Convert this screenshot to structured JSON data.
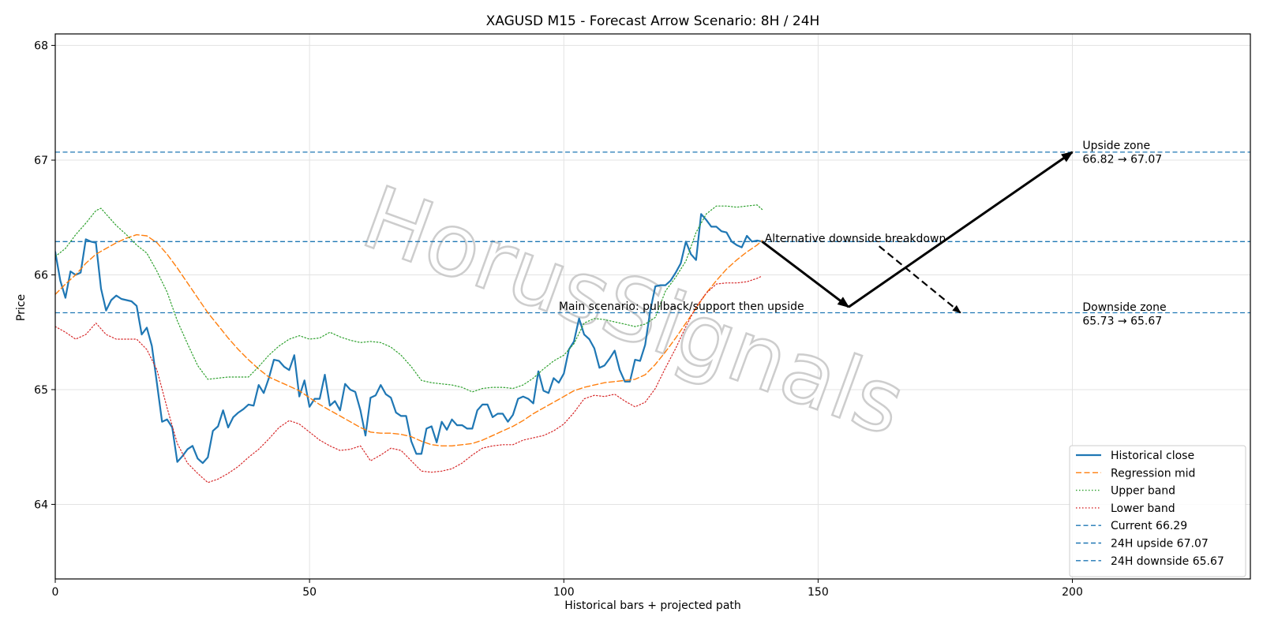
{
  "chart_data": {
    "type": "line",
    "title": "XAGUSD M15 - Forecast Arrow Scenario: 8H / 24H",
    "xlabel": "Historical bars + projected path",
    "ylabel": "Price",
    "xlim": [
      0,
      235
    ],
    "ylim": [
      63.35,
      68.1
    ],
    "xticks": [
      0,
      50,
      100,
      150,
      200
    ],
    "yticks": [
      64,
      65,
      66,
      67,
      68
    ],
    "grid": true,
    "legend_position": "lower-right",
    "watermark": "HorusSignals",
    "colors": {
      "close": "#1f77b4",
      "mid": "#ff7f0e",
      "upper": "#2ca02c",
      "lower": "#d62728",
      "hline": "#1f77b4",
      "arrow": "#000000"
    },
    "series": [
      {
        "name": "Historical close",
        "style": "solid",
        "x": [
          0,
          1,
          2,
          3,
          4,
          5,
          6,
          7,
          8,
          9,
          10,
          11,
          12,
          13,
          14,
          15,
          16,
          17,
          18,
          19,
          20,
          21,
          22,
          23,
          24,
          25,
          26,
          27,
          28,
          29,
          30,
          31,
          32,
          33,
          34,
          35,
          36,
          37,
          38,
          39,
          40,
          41,
          42,
          43,
          44,
          45,
          46,
          47,
          48,
          49,
          50,
          51,
          52,
          53,
          54,
          55,
          56,
          57,
          58,
          59,
          60,
          61,
          62,
          63,
          64,
          65,
          66,
          67,
          68,
          69,
          70,
          71,
          72,
          73,
          74,
          75,
          76,
          77,
          78,
          79,
          80,
          81,
          82,
          83,
          84,
          85,
          86,
          87,
          88,
          89,
          90,
          91,
          92,
          93,
          94,
          95,
          96,
          97,
          98,
          99,
          100,
          101,
          102,
          103,
          104,
          105,
          106,
          107,
          108,
          109,
          110,
          111,
          112,
          113,
          114,
          115,
          116,
          117,
          118,
          119,
          120,
          121,
          122,
          123,
          124,
          125,
          126,
          127,
          128,
          129,
          130,
          131,
          132,
          133,
          134,
          135,
          136,
          137,
          138,
          139
        ],
        "values": [
          66.2,
          65.95,
          65.8,
          66.03,
          66.0,
          66.02,
          66.31,
          66.29,
          66.28,
          65.88,
          65.69,
          65.78,
          65.82,
          65.79,
          65.78,
          65.77,
          65.73,
          65.48,
          65.54,
          65.38,
          65.05,
          64.72,
          64.74,
          64.67,
          64.37,
          64.42,
          64.48,
          64.51,
          64.4,
          64.36,
          64.41,
          64.64,
          64.68,
          64.82,
          64.67,
          64.76,
          64.8,
          64.83,
          64.87,
          64.86,
          65.04,
          64.97,
          65.1,
          65.26,
          65.25,
          65.2,
          65.17,
          65.3,
          64.94,
          65.08,
          64.85,
          64.92,
          64.92,
          65.13,
          64.86,
          64.9,
          64.82,
          65.05,
          65.0,
          64.98,
          64.82,
          64.6,
          64.93,
          64.95,
          65.04,
          64.96,
          64.93,
          64.8,
          64.77,
          64.77,
          64.55,
          64.44,
          64.44,
          64.66,
          64.68,
          64.54,
          64.72,
          64.65,
          64.74,
          64.69,
          64.69,
          64.66,
          64.66,
          64.82,
          64.87,
          64.87,
          64.76,
          64.79,
          64.79,
          64.72,
          64.78,
          64.92,
          64.94,
          64.92,
          64.88,
          65.16,
          64.99,
          64.97,
          65.1,
          65.06,
          65.14,
          65.35,
          65.42,
          65.62,
          65.48,
          65.44,
          65.36,
          65.19,
          65.21,
          65.27,
          65.34,
          65.17,
          65.07,
          65.07,
          65.26,
          65.25,
          65.39,
          65.69,
          65.9,
          65.91,
          65.91,
          65.95,
          66.02,
          66.1,
          66.29,
          66.18,
          66.13,
          66.53,
          66.48,
          66.42,
          66.42,
          66.38,
          66.37,
          66.29,
          66.26,
          66.24,
          66.34,
          66.29,
          66.3,
          66.29
        ]
      },
      {
        "name": "Regression mid",
        "style": "dashed",
        "x": [
          0,
          2,
          4,
          6,
          8,
          10,
          12,
          14,
          16,
          18,
          20,
          22,
          24,
          26,
          28,
          30,
          32,
          34,
          36,
          38,
          40,
          42,
          44,
          46,
          48,
          50,
          52,
          54,
          56,
          58,
          60,
          62,
          64,
          66,
          68,
          70,
          72,
          74,
          76,
          78,
          80,
          82,
          84,
          86,
          88,
          90,
          92,
          94,
          96,
          98,
          100,
          102,
          104,
          106,
          108,
          110,
          112,
          114,
          116,
          118,
          120,
          122,
          124,
          126,
          128,
          130,
          132,
          134,
          136,
          138,
          139
        ],
        "values": [
          65.83,
          65.92,
          66.0,
          66.1,
          66.18,
          66.23,
          66.28,
          66.32,
          66.35,
          66.34,
          66.28,
          66.18,
          66.06,
          65.93,
          65.8,
          65.67,
          65.56,
          65.45,
          65.35,
          65.26,
          65.18,
          65.11,
          65.07,
          65.03,
          64.99,
          64.93,
          64.87,
          64.82,
          64.77,
          64.72,
          64.67,
          64.63,
          64.62,
          64.62,
          64.61,
          64.59,
          64.55,
          64.52,
          64.51,
          64.51,
          64.52,
          64.53,
          64.56,
          64.6,
          64.64,
          64.68,
          64.73,
          64.79,
          64.84,
          64.89,
          64.94,
          64.99,
          65.02,
          65.04,
          65.06,
          65.07,
          65.08,
          65.09,
          65.13,
          65.22,
          65.33,
          65.45,
          65.58,
          65.71,
          65.84,
          65.95,
          66.05,
          66.13,
          66.2,
          66.26,
          66.3
        ]
      },
      {
        "name": "Upper band",
        "style": "dotted",
        "x": [
          0,
          2,
          4,
          6,
          8,
          9,
          10,
          12,
          14,
          16,
          18,
          20,
          22,
          24,
          26,
          28,
          30,
          32,
          34,
          36,
          38,
          40,
          42,
          44,
          46,
          48,
          50,
          52,
          54,
          56,
          58,
          60,
          62,
          64,
          66,
          68,
          70,
          72,
          74,
          76,
          78,
          80,
          82,
          84,
          86,
          88,
          90,
          92,
          94,
          96,
          98,
          100,
          102,
          104,
          106,
          108,
          110,
          112,
          114,
          116,
          118,
          120,
          122,
          124,
          126,
          128,
          130,
          132,
          134,
          136,
          138,
          139
        ],
        "values": [
          66.16,
          66.23,
          66.35,
          66.45,
          66.56,
          66.58,
          66.53,
          66.43,
          66.35,
          66.26,
          66.19,
          66.03,
          65.85,
          65.6,
          65.4,
          65.21,
          65.09,
          65.1,
          65.11,
          65.11,
          65.11,
          65.2,
          65.3,
          65.38,
          65.44,
          65.47,
          65.44,
          65.45,
          65.5,
          65.46,
          65.43,
          65.41,
          65.42,
          65.41,
          65.37,
          65.3,
          65.2,
          65.08,
          65.06,
          65.05,
          65.04,
          65.02,
          64.98,
          65.01,
          65.02,
          65.02,
          65.01,
          65.04,
          65.1,
          65.18,
          65.25,
          65.3,
          65.4,
          65.58,
          65.62,
          65.61,
          65.59,
          65.57,
          65.55,
          65.57,
          65.63,
          65.86,
          65.98,
          66.12,
          66.37,
          66.53,
          66.6,
          66.6,
          66.59,
          66.6,
          66.61,
          66.57
        ]
      },
      {
        "name": "Lower band",
        "style": "dotted",
        "x": [
          0,
          2,
          4,
          6,
          8,
          10,
          12,
          14,
          16,
          18,
          20,
          22,
          24,
          26,
          28,
          30,
          32,
          34,
          36,
          38,
          40,
          42,
          44,
          46,
          48,
          50,
          52,
          54,
          56,
          58,
          60,
          62,
          64,
          66,
          68,
          70,
          72,
          74,
          76,
          78,
          80,
          82,
          84,
          86,
          88,
          90,
          92,
          94,
          96,
          98,
          100,
          102,
          104,
          106,
          108,
          110,
          112,
          114,
          116,
          118,
          120,
          122,
          124,
          126,
          128,
          130,
          132,
          134,
          136,
          138,
          139
        ],
        "values": [
          65.55,
          65.5,
          65.44,
          65.48,
          65.58,
          65.48,
          65.44,
          65.44,
          65.44,
          65.35,
          65.17,
          64.84,
          64.53,
          64.36,
          64.27,
          64.19,
          64.22,
          64.27,
          64.33,
          64.41,
          64.48,
          64.57,
          64.67,
          64.73,
          64.7,
          64.63,
          64.56,
          64.51,
          64.47,
          64.48,
          64.51,
          64.38,
          64.43,
          64.49,
          64.47,
          64.38,
          64.29,
          64.28,
          64.29,
          64.31,
          64.36,
          64.43,
          64.49,
          64.51,
          64.52,
          64.52,
          64.56,
          64.58,
          64.6,
          64.64,
          64.7,
          64.8,
          64.92,
          64.95,
          64.94,
          64.96,
          64.9,
          64.85,
          64.89,
          65.01,
          65.19,
          65.36,
          65.55,
          65.72,
          65.84,
          65.92,
          65.93,
          65.93,
          65.94,
          65.97,
          65.99
        ]
      }
    ],
    "hlines": [
      {
        "name": "Current 66.29",
        "y": 66.29
      },
      {
        "name": "24H upside 67.07",
        "y": 67.07
      },
      {
        "name": "24H downside 65.67",
        "y": 65.67
      }
    ],
    "arrows": [
      {
        "kind": "main",
        "style": "solid",
        "from": [
          139,
          66.29
        ],
        "to": [
          156,
          65.72
        ]
      },
      {
        "kind": "main",
        "style": "solid",
        "from": [
          156,
          65.72
        ],
        "to": [
          200,
          67.07
        ]
      },
      {
        "kind": "alternative",
        "style": "dashed",
        "from": [
          162,
          66.25
        ],
        "to": [
          178,
          65.67
        ]
      }
    ],
    "annotations": {
      "alt": {
        "text": "Alternative downside breakdown",
        "x": 139.5,
        "y": 66.32
      },
      "main": {
        "text": "Main scenario: pullback/support then upside",
        "x": 99,
        "y": 65.73
      },
      "upside_title": {
        "text": "Upside zone",
        "x": 202,
        "y": 67.13
      },
      "upside_range": {
        "text": "66.82 → 67.07",
        "x": 202,
        "y": 67.01
      },
      "downside_title": {
        "text": "Downside zone",
        "x": 202,
        "y": 65.72
      },
      "downside_range": {
        "text": "65.73 → 65.67",
        "x": 202,
        "y": 65.6
      }
    }
  }
}
